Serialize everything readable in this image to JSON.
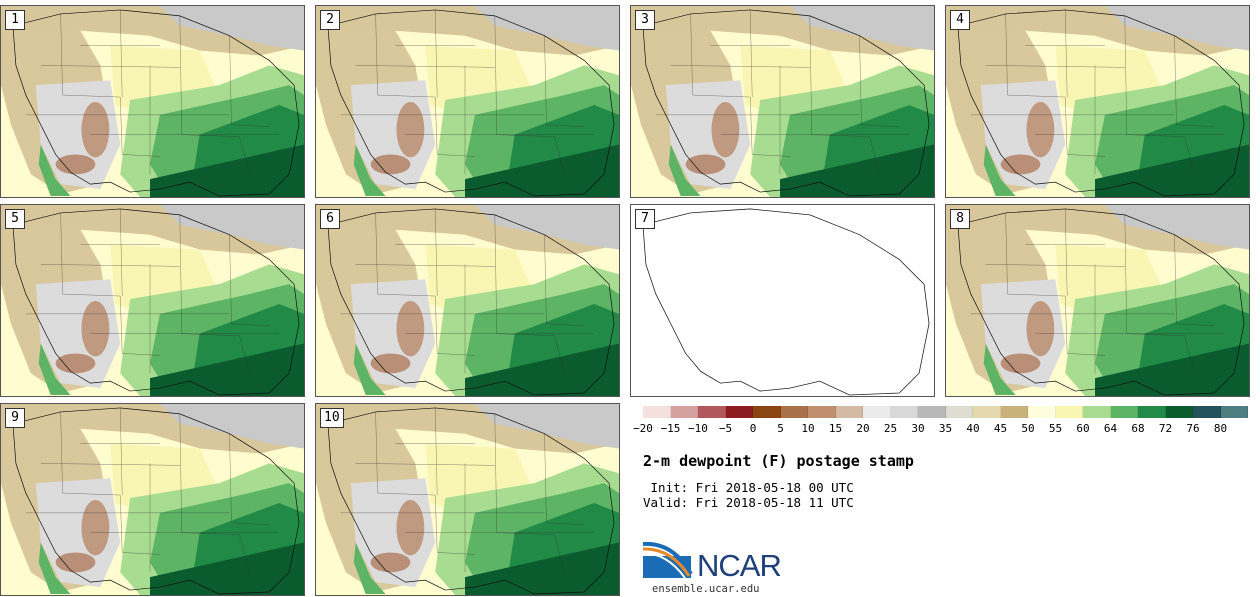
{
  "panels": [
    {
      "label": "1",
      "blank": false
    },
    {
      "label": "2",
      "blank": false
    },
    {
      "label": "3",
      "blank": false
    },
    {
      "label": "4",
      "blank": false
    },
    {
      "label": "5",
      "blank": false
    },
    {
      "label": "6",
      "blank": false
    },
    {
      "label": "7",
      "blank": true
    },
    {
      "label": "8",
      "blank": false
    },
    {
      "label": "9",
      "blank": false
    },
    {
      "label": "10",
      "blank": false
    }
  ],
  "colorbar": {
    "ticks": [
      "−20",
      "−15",
      "−10",
      "−5",
      "0",
      "5",
      "10",
      "15",
      "20",
      "25",
      "30",
      "35",
      "40",
      "45",
      "50",
      "55",
      "60",
      "64",
      "68",
      "72",
      "76",
      "80"
    ],
    "colors": [
      "#f4e0de",
      "#d4a0a0",
      "#b0585c",
      "#8c1c20",
      "#8b4513",
      "#a9714a",
      "#bf8f6e",
      "#d4b9a4",
      "#ecebec",
      "#d8d8d8",
      "#b8b8b8",
      "#dcdcd0",
      "#e6d8ae",
      "#c8b27a",
      "#fffedc",
      "#f9f6b4",
      "#a8dc90",
      "#5cb464",
      "#218a46",
      "#0a5b2e",
      "#24535d",
      "#4e7f80"
    ]
  },
  "title": "2-m dewpoint (F) postage stamp",
  "init_text": " Init: Fri 2018-05-18 00 UTC",
  "valid_text": "Valid: Fri 2018-05-18 11 UTC",
  "logo": {
    "text": "NCAR",
    "url": "ensemble.ucar.edu"
  }
}
